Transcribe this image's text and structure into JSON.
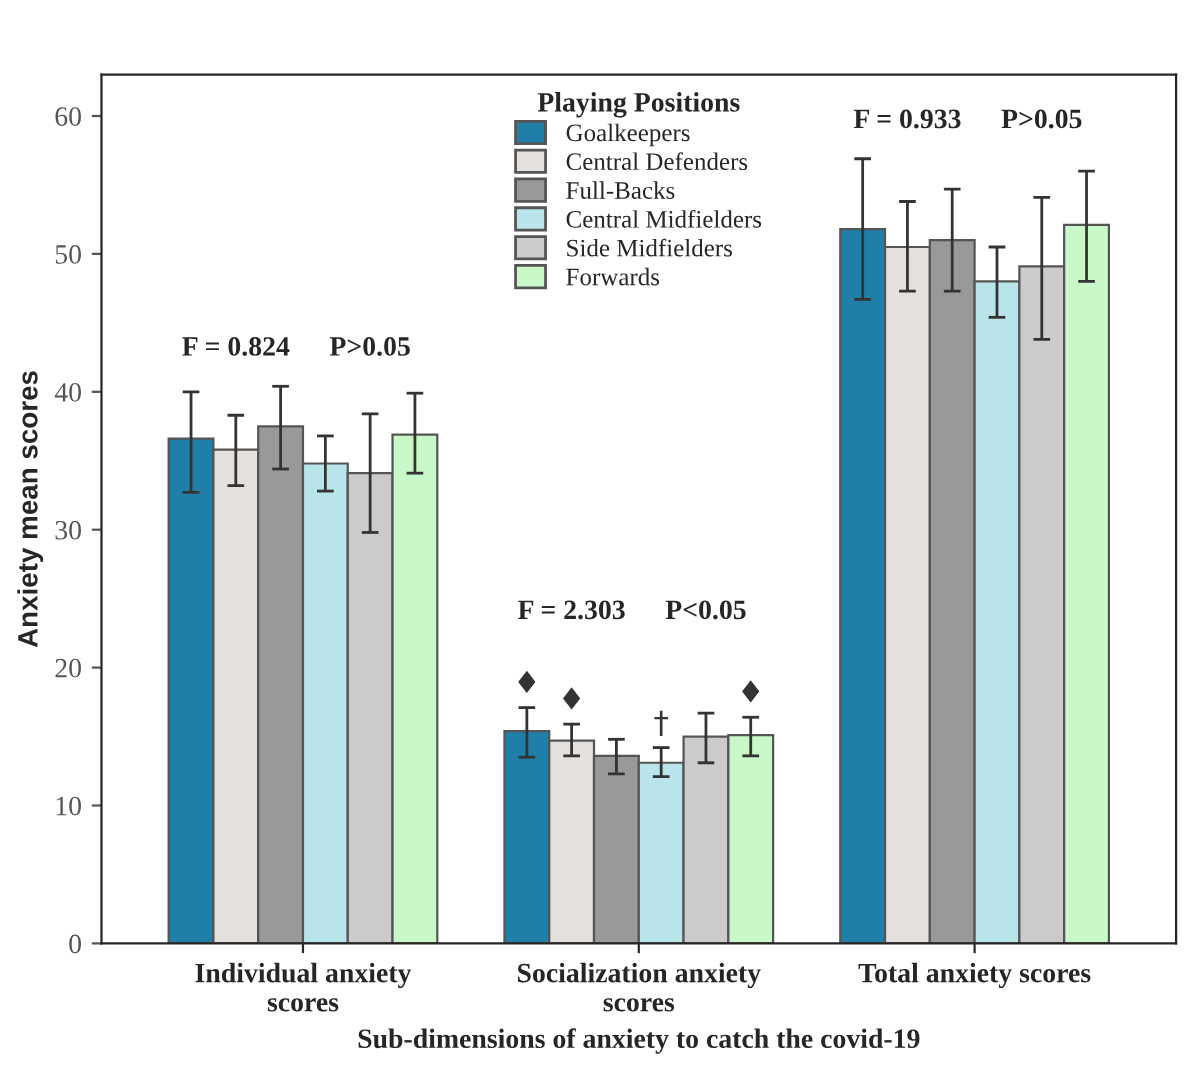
{
  "chart_data": {
    "type": "bar",
    "xlabel": "Sub-dimensions of anxiety to catch the covid-19",
    "ylabel": "Anxiety mean scores",
    "legend_title": "Playing Positions",
    "categories": [
      "Individual anxiety\nscores",
      "Socialization anxiety\nscores",
      "Total anxiety scores"
    ],
    "series": [
      {
        "name": "Goalkeepers",
        "color": "#1f7fa8",
        "values": [
          36.6,
          15.4,
          51.8
        ],
        "errors": [
          [
            32.7,
            40.0
          ],
          [
            13.5,
            17.1
          ],
          [
            46.7,
            56.9
          ]
        ],
        "value_labels": [
          null,
          "♦",
          null
        ]
      },
      {
        "name": "Central Defenders",
        "color": "#e4e0dd",
        "values": [
          35.8,
          14.7,
          50.5
        ],
        "errors": [
          [
            33.2,
            38.3
          ],
          [
            13.6,
            15.9
          ],
          [
            47.3,
            53.8
          ]
        ],
        "value_labels": [
          null,
          "♦",
          null
        ]
      },
      {
        "name": "Full-Backs",
        "color": "#9a9898",
        "values": [
          37.5,
          13.6,
          51.0
        ],
        "errors": [
          [
            34.4,
            40.4
          ],
          [
            12.3,
            14.8
          ],
          [
            47.3,
            54.7
          ]
        ]
      },
      {
        "name": "Central Midfielders",
        "color": "#b8e4ea",
        "values": [
          34.8,
          13.1,
          48.0
        ],
        "errors": [
          [
            32.8,
            36.8
          ],
          [
            12.1,
            14.2
          ],
          [
            45.4,
            50.5
          ]
        ],
        "value_labels": [
          null,
          "†",
          null
        ]
      },
      {
        "name": "Side Midfielders",
        "color": "#cccaca",
        "values": [
          34.1,
          15.0,
          49.1
        ],
        "errors": [
          [
            29.8,
            38.4
          ],
          [
            13.1,
            16.7
          ],
          [
            43.8,
            54.1
          ]
        ]
      },
      {
        "name": "Forwards",
        "color": "#c8f8c8",
        "values": [
          36.9,
          15.1,
          52.1
        ],
        "errors": [
          [
            34.1,
            39.9
          ],
          [
            13.6,
            16.4
          ],
          [
            48.0,
            56.0
          ]
        ],
        "value_labels": [
          null,
          "♦",
          null
        ]
      }
    ],
    "annotations": [
      "F = 0.824",
      "P>0.05",
      "F = 2.303",
      "P<0.05",
      "F = 0.933",
      "P>0.05"
    ],
    "ylim": [
      0,
      63
    ],
    "yticks": [
      0,
      10,
      20,
      30,
      40,
      50,
      60
    ],
    "legend": "top",
    "grid": false
  }
}
